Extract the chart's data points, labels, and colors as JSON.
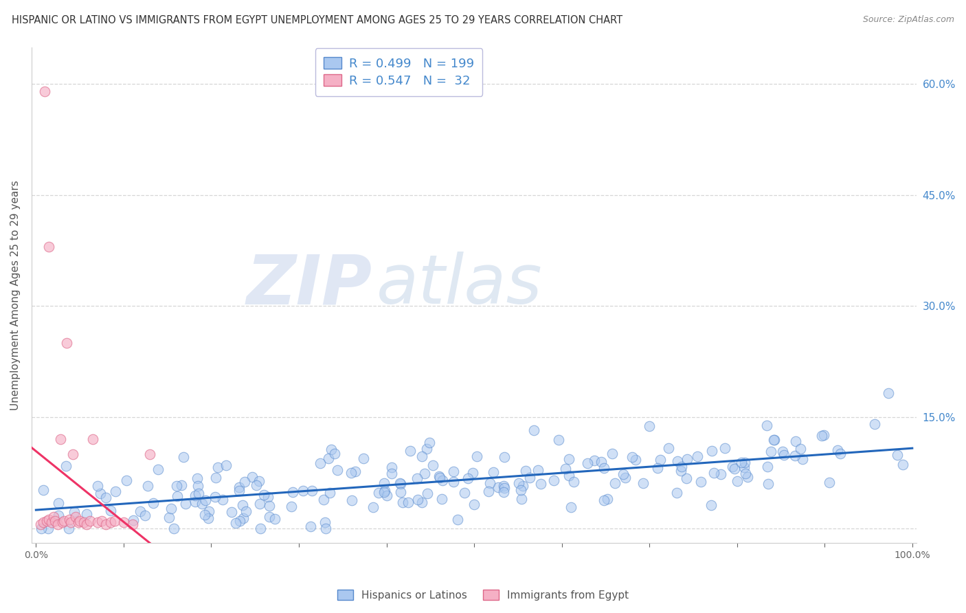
{
  "title": "HISPANIC OR LATINO VS IMMIGRANTS FROM EGYPT UNEMPLOYMENT AMONG AGES 25 TO 29 YEARS CORRELATION CHART",
  "source": "Source: ZipAtlas.com",
  "ylabel": "Unemployment Among Ages 25 to 29 years",
  "xlim": [
    -0.005,
    1.005
  ],
  "ylim": [
    -0.02,
    0.65
  ],
  "xticks": [
    0.0,
    0.1,
    0.2,
    0.3,
    0.4,
    0.5,
    0.6,
    0.7,
    0.8,
    0.9,
    1.0
  ],
  "xticklabels": [
    "0.0%",
    "",
    "",
    "",
    "",
    "",
    "",
    "",
    "",
    "",
    "100.0%"
  ],
  "yticks": [
    0.0,
    0.15,
    0.3,
    0.45,
    0.6
  ],
  "yticklabels": [
    "",
    "15.0%",
    "30.0%",
    "45.0%",
    "60.0%"
  ],
  "series1_color": "#aac8f0",
  "series1_edge": "#5588cc",
  "series2_color": "#f5b0c5",
  "series2_edge": "#dd6688",
  "line1_color": "#2266bb",
  "line2_color": "#ee3366",
  "line2_dash_color": "#ddaacc",
  "R1": 0.499,
  "N1": 199,
  "R2": 0.547,
  "N2": 32,
  "legend1": "Hispanics or Latinos",
  "legend2": "Immigrants from Egypt",
  "watermark_zip": "ZIP",
  "watermark_atlas": "atlas",
  "background_color": "#ffffff",
  "grid_color": "#cccccc",
  "title_color": "#333333",
  "title_fontsize": 10.5,
  "label_fontsize": 11,
  "tick_fontsize": 10,
  "right_ytick_color": "#4488cc",
  "legend_R_color": "#4488cc",
  "legend_N_color": "#336699"
}
